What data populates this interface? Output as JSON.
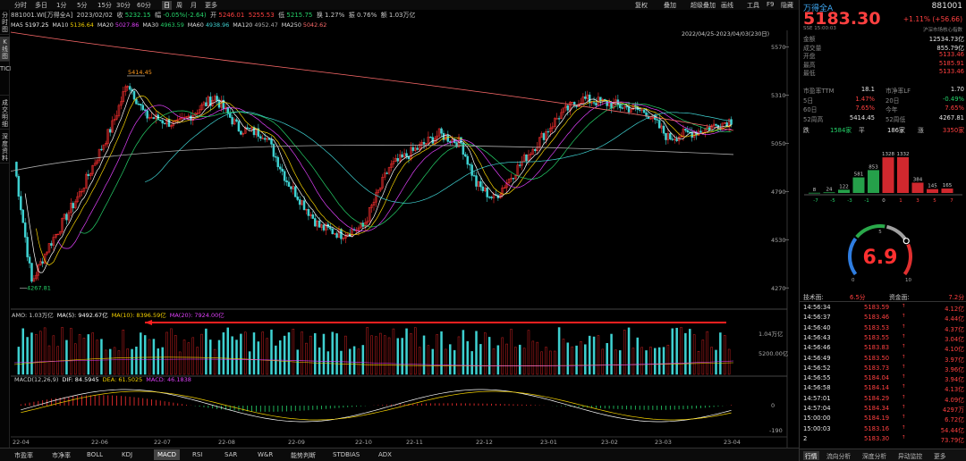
{
  "toolbar": {
    "left": [
      "分时",
      "多日",
      "1分",
      "5分",
      "15分",
      "30分",
      "60分",
      "日",
      "周",
      "月",
      "更多"
    ],
    "right": [
      "复权",
      "叠加",
      "超级叠加",
      "画线",
      "工具",
      "F9",
      "隐藏"
    ]
  },
  "info": {
    "code_name": "881001.WI[万得全A]",
    "date": "2023/02/02",
    "close_label": "收",
    "close": "5232.15",
    "chg_label": "幅",
    "chg": "-0.05%(-2.64)",
    "open_label": "开",
    "open": "5246.01",
    "high_val": "5255.53",
    "low_label": "低",
    "low": "5215.75",
    "turnover_label": "换",
    "turnover": "1.27%",
    "amp_label": "振",
    "amp": "0.76%",
    "volume_label": "额",
    "volume": "1.03万亿"
  },
  "ma": [
    {
      "name": "MA5",
      "value": "5197.25",
      "color": "#ffffff"
    },
    {
      "name": "MA10",
      "value": "5136.64",
      "color": "#f5d200"
    },
    {
      "name": "MA20",
      "value": "5027.86",
      "color": "#e040fb"
    },
    {
      "name": "MA30",
      "value": "4963.59",
      "color": "#25d36a"
    },
    {
      "name": "MA60",
      "value": "4938.96",
      "color": "#3fd2d2"
    },
    {
      "name": "MA120",
      "value": "4952.47",
      "color": "#aaaaaa"
    },
    {
      "name": "MA250",
      "value": "5042.62",
      "color": "#ff6b6b"
    }
  ],
  "range_label": "2022/04/25-2023/04/03(230日)",
  "leftnav": [
    "分时图",
    "K线图",
    "TICK",
    "成交明细",
    "深度资料"
  ],
  "price_axis": [
    "5570",
    "5310",
    "5050",
    "4790",
    "4530",
    "4270"
  ],
  "annot": {
    "high": "5414.45",
    "low": "4267.81"
  },
  "amo": {
    "label": "AMO: 1.03万亿",
    "ma5": "MA(5): 9492.67亿",
    "ma10": "MA(10): 8396.59亿",
    "ma20": "MA(20): 7924.00亿",
    "axis_top": "1.04万亿",
    "axis_mid": "5200.00亿"
  },
  "macd": {
    "label": "MACD(12,26,9)",
    "dif": "DIF: 84.5945",
    "dea": "DEA: 61.5025",
    "macd": "MACD: 46.1838",
    "axis_top": "0",
    "axis_bot": "-190"
  },
  "dates": [
    "22-04",
    "22-06",
    "22-07",
    "22-08",
    "22-09",
    "22-10",
    "22-11",
    "22-12",
    "23-01",
    "23-02",
    "23-03",
    "23-04"
  ],
  "bottom_tabs": [
    "市盈率",
    "市净率",
    "BOLL",
    "KDJ",
    "MACD",
    "RSI",
    "SAR",
    "W&R",
    "能势判断",
    "STDBIAS",
    "ADX"
  ],
  "right": {
    "name": "万得全A",
    "code": "881001",
    "price": "5183.30",
    "change": "+1.11% (+56.66)",
    "sub_left": "SSE 15:00:03",
    "sub_right": "沪深市场核心指数",
    "stats": [
      [
        "金额",
        "12534.73亿"
      ],
      [
        "成交量",
        "855.79亿"
      ],
      [
        "开盘",
        "5133.46"
      ],
      [
        "最高",
        "5185.91"
      ],
      [
        "最低",
        "5133.46"
      ]
    ],
    "pe": [
      [
        "市盈率TTM",
        "18.1",
        "市净率LF",
        "1.70"
      ],
      [
        "5日",
        "1.47%",
        "20日",
        "-0.49%"
      ],
      [
        "60日",
        "7.65%",
        "今年",
        "7.65%"
      ],
      [
        "52周高",
        "5414.45",
        "52周低",
        "4267.81"
      ]
    ],
    "breadth": {
      "down_label": "跌",
      "down": "1584家",
      "flat_label": "平",
      "flat": "186家",
      "up_label": "涨",
      "up": "3350家"
    },
    "dist_values": [
      "8",
      "24",
      "122",
      "581",
      "853",
      "1328",
      "1332",
      "384",
      "145",
      "165"
    ],
    "dist_axis": [
      "-7",
      "-5",
      "-3",
      "-1",
      "0",
      "1",
      "3",
      "5",
      "7"
    ],
    "gauge": {
      "value": "6.9",
      "min": "0",
      "mid": "5",
      "max": "10"
    },
    "tech_label": "技术面:",
    "tech": "6.5分",
    "fund_label": "资金面:",
    "fund": "7.2分",
    "ticks": [
      [
        "14:56:34",
        "5183.59",
        "4.12亿"
      ],
      [
        "14:56:37",
        "5183.46",
        "4.44亿"
      ],
      [
        "14:56:40",
        "5183.53",
        "4.37亿"
      ],
      [
        "14:56:43",
        "5183.55",
        "3.04亿"
      ],
      [
        "14:56:46",
        "5183.83",
        "4.10亿"
      ],
      [
        "14:56:49",
        "5183.50",
        "3.97亿"
      ],
      [
        "14:56:52",
        "5183.73",
        "3.96亿"
      ],
      [
        "14:56:55",
        "5184.04",
        "3.94亿"
      ],
      [
        "14:56:58",
        "5184.14",
        "4.13亿"
      ],
      [
        "14:57:01",
        "5184.29",
        "4.09亿"
      ],
      [
        "14:57:04",
        "5184.34",
        "4297万"
      ],
      [
        "15:00:00",
        "5184.19",
        "6.72亿"
      ],
      [
        "15:00:03",
        "5183.16",
        "54.44亿"
      ],
      [
        "2",
        "5183.30",
        "73.79亿"
      ]
    ],
    "tabs": [
      "行情",
      "流向分析",
      "深度分析",
      "异动监控",
      "更多"
    ]
  }
}
